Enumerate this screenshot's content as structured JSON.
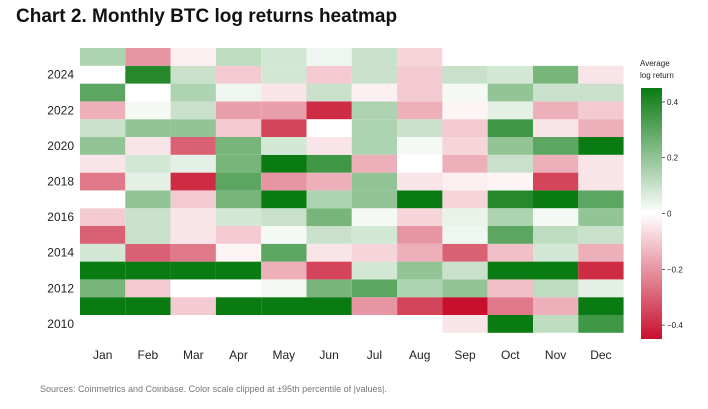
{
  "chart_data": {
    "type": "heatmap",
    "title": "Chart 2. Monthly BTC log returns heatmap",
    "x_labels": [
      "Jan",
      "Feb",
      "Mar",
      "Apr",
      "May",
      "Jun",
      "Jul",
      "Aug",
      "Sep",
      "Oct",
      "Nov",
      "Dec"
    ],
    "y_labels": [
      2010,
      2011,
      2012,
      2013,
      2014,
      2015,
      2016,
      2017,
      2018,
      2019,
      2020,
      2021,
      2022,
      2023,
      2024,
      2025
    ],
    "y_tick_labels": [
      "2010",
      "2012",
      "2014",
      "2016",
      "2018",
      "2020",
      "2022",
      "2024"
    ],
    "values": [
      [
        null,
        null,
        null,
        null,
        null,
        null,
        null,
        null,
        -0.05,
        0.45,
        0.12,
        0.35
      ],
      [
        0.45,
        0.45,
        -0.1,
        0.45,
        0.45,
        0.45,
        -0.2,
        -0.35,
        -0.45,
        -0.25,
        -0.15,
        0.45
      ],
      [
        0.25,
        -0.1,
        0.0,
        0.0,
        0.02,
        0.25,
        0.3,
        0.15,
        0.2,
        -0.12,
        0.12,
        0.05
      ],
      [
        0.45,
        0.45,
        0.45,
        0.45,
        -0.15,
        -0.35,
        0.08,
        0.2,
        0.1,
        0.45,
        0.45,
        -0.4
      ],
      [
        0.08,
        -0.3,
        -0.25,
        -0.02,
        0.3,
        -0.05,
        -0.08,
        -0.15,
        -0.3,
        -0.12,
        0.08,
        -0.15
      ],
      [
        -0.3,
        0.1,
        -0.05,
        -0.1,
        0.02,
        0.1,
        0.08,
        -0.2,
        0.03,
        0.3,
        0.12,
        0.1
      ],
      [
        -0.1,
        0.1,
        -0.05,
        0.08,
        0.1,
        0.25,
        0.02,
        -0.08,
        0.04,
        0.15,
        0.02,
        0.2
      ],
      [
        0.0,
        0.2,
        -0.1,
        0.25,
        0.45,
        0.15,
        0.2,
        0.45,
        -0.08,
        0.4,
        0.45,
        0.3
      ],
      [
        -0.25,
        0.05,
        -0.4,
        0.3,
        -0.2,
        -0.15,
        0.2,
        -0.05,
        -0.03,
        -0.02,
        -0.35,
        -0.05
      ],
      [
        -0.05,
        0.08,
        0.05,
        0.25,
        0.45,
        0.35,
        -0.15,
        0.0,
        -0.15,
        0.1,
        -0.15,
        -0.05
      ],
      [
        0.2,
        -0.05,
        -0.3,
        0.25,
        0.08,
        -0.05,
        0.15,
        0.02,
        -0.08,
        0.2,
        0.3,
        0.45
      ],
      [
        0.1,
        0.2,
        0.2,
        -0.1,
        -0.35,
        0.0,
        0.15,
        0.1,
        -0.1,
        0.35,
        -0.05,
        -0.15
      ],
      [
        -0.15,
        0.02,
        0.1,
        -0.18,
        -0.18,
        -0.4,
        0.15,
        -0.15,
        -0.02,
        0.05,
        -0.15,
        -0.1
      ],
      [
        0.3,
        0.0,
        0.15,
        0.03,
        -0.05,
        0.1,
        -0.03,
        -0.1,
        0.02,
        0.2,
        0.1,
        0.1
      ],
      [
        0.0,
        0.4,
        0.1,
        -0.1,
        0.08,
        -0.1,
        0.1,
        -0.1,
        0.1,
        0.08,
        0.25,
        -0.05
      ],
      [
        0.15,
        -0.2,
        -0.03,
        0.12,
        0.08,
        0.03,
        0.1,
        -0.08,
        null,
        null,
        null,
        null
      ]
    ],
    "color_scale": {
      "min": -0.45,
      "max": 0.45,
      "low_color": "#c8102e",
      "mid_color": "#ffffff",
      "high_color": "#0a7a12",
      "title_lines": [
        "Average",
        "log return"
      ],
      "tick_values": [
        0.4,
        0.2,
        0,
        -0.2,
        -0.4
      ],
      "tick_labels": [
        "0.4",
        "0.2",
        "0",
        "−0.2",
        "−0.4"
      ]
    },
    "source": "Sources: Coinmetrics and Coinbase. Color scale clipped at ±95th percentile of |values|."
  }
}
